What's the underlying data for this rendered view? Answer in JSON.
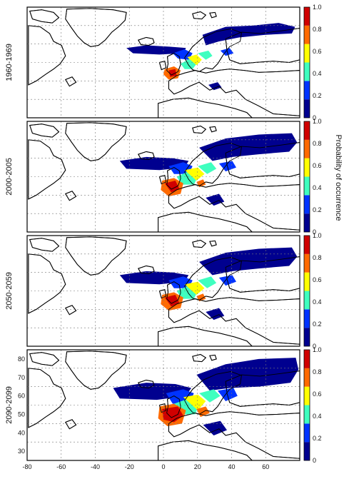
{
  "figure": {
    "colorbar_title": "Probability of occurrence",
    "colorbar_ticks": [
      "0",
      "0.2",
      "0.4",
      "0.6",
      "0.8",
      "1.0"
    ],
    "colorbar_colors": [
      "#00008f",
      "#0033ff",
      "#3fffbf",
      "#ffff00",
      "#ff6a00",
      "#d00000"
    ],
    "x_ticks": [
      "-80",
      "-60",
      "-40",
      "-20",
      "0",
      "20",
      "40",
      "60"
    ],
    "y_ticks": [
      "30",
      "40",
      "50",
      "60",
      "70",
      "80"
    ],
    "land_color": "#ffffff",
    "coast_color": "#000000",
    "grid_color": "#777777"
  },
  "panels": [
    {
      "period": "1960-1969",
      "north_extent": "moderate"
    },
    {
      "period": "2000-2005",
      "north_extent": "wider"
    },
    {
      "period": "2050-2059",
      "north_extent": "wider"
    },
    {
      "period": "2090-2099",
      "north_extent": "widest"
    }
  ]
}
